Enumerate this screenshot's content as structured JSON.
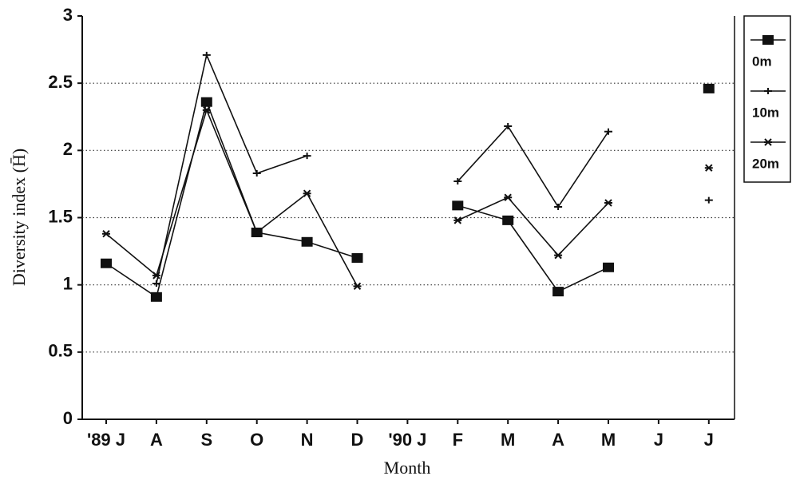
{
  "chart_data": {
    "type": "line",
    "x_label": "Month",
    "y_label": "Diversity index (H̄)",
    "categories": [
      "'89 J",
      "A",
      "S",
      "O",
      "N",
      "D",
      "'90 J",
      "F",
      "M",
      "A",
      "M",
      "J",
      "J"
    ],
    "series": [
      {
        "name": "0m",
        "color": "#111111",
        "marker": "square",
        "values": [
          1.16,
          0.91,
          2.36,
          1.39,
          1.32,
          1.2,
          null,
          1.59,
          1.48,
          0.95,
          1.13,
          null,
          2.46
        ]
      },
      {
        "name": "10m",
        "color": "#111111",
        "marker": "plus",
        "values": [
          null,
          1.01,
          2.71,
          1.83,
          1.96,
          null,
          null,
          1.77,
          2.18,
          1.58,
          2.14,
          null,
          1.63
        ]
      },
      {
        "name": "20m",
        "color": "#111111",
        "marker": "asterisk",
        "values": [
          1.38,
          1.07,
          2.3,
          1.39,
          1.68,
          0.99,
          null,
          1.48,
          1.65,
          1.22,
          1.61,
          null,
          1.87
        ]
      }
    ],
    "ylim": [
      0,
      3
    ],
    "yticks": [
      0,
      0.5,
      1,
      1.5,
      2,
      2.5,
      3
    ],
    "grid": true
  }
}
